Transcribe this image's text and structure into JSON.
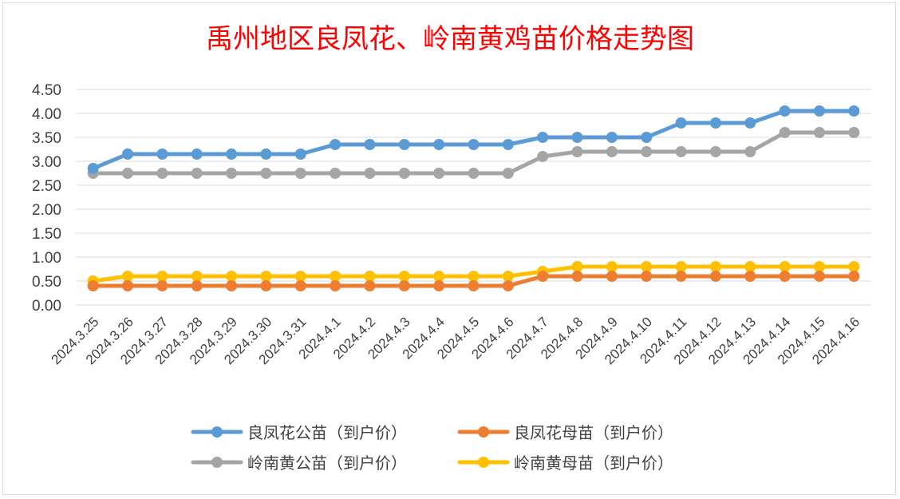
{
  "chart_data": {
    "type": "line",
    "title": "禹州地区良凤花、岭南黄鸡苗价格走势图",
    "xlabel": "",
    "ylabel": "",
    "categories": [
      "2024.3.25",
      "2024.3.26",
      "2024.3.27",
      "2024.3.28",
      "2024.3.29",
      "2024.3.30",
      "2024.3.31",
      "2024.4.1",
      "2024.4.2",
      "2024.4.3",
      "2024.4.4",
      "2024.4.5",
      "2024.4.6",
      "2024.4.7",
      "2024.4.8",
      "2024.4.9",
      "2024.4.10",
      "2024.4.11",
      "2024.4.12",
      "2024.4.13",
      "2024.4.14",
      "2024.4.15",
      "2024.4.16"
    ],
    "ylim": [
      0,
      4.5
    ],
    "yticks": [
      "0.00",
      "0.50",
      "1.00",
      "1.50",
      "2.00",
      "2.50",
      "3.00",
      "3.50",
      "4.00",
      "4.50"
    ],
    "grid": true,
    "legend_position": "bottom",
    "series": [
      {
        "name": "良凤花公苗（到户价）",
        "color": "#5b9bd5",
        "values": [
          2.85,
          3.15,
          3.15,
          3.15,
          3.15,
          3.15,
          3.15,
          3.35,
          3.35,
          3.35,
          3.35,
          3.35,
          3.35,
          3.5,
          3.5,
          3.5,
          3.5,
          3.8,
          3.8,
          3.8,
          4.05,
          4.05,
          4.05
        ]
      },
      {
        "name": "良凤花母苗（到户价）",
        "color": "#ed7d31",
        "values": [
          0.4,
          0.4,
          0.4,
          0.4,
          0.4,
          0.4,
          0.4,
          0.4,
          0.4,
          0.4,
          0.4,
          0.4,
          0.4,
          0.6,
          0.6,
          0.6,
          0.6,
          0.6,
          0.6,
          0.6,
          0.6,
          0.6,
          0.6
        ]
      },
      {
        "name": "岭南黄公苗（到户价）",
        "color": "#a5a5a5",
        "values": [
          2.75,
          2.75,
          2.75,
          2.75,
          2.75,
          2.75,
          2.75,
          2.75,
          2.75,
          2.75,
          2.75,
          2.75,
          2.75,
          3.1,
          3.2,
          3.2,
          3.2,
          3.2,
          3.2,
          3.2,
          3.6,
          3.6,
          3.6
        ]
      },
      {
        "name": "岭南黄母苗（到户价）",
        "color": "#ffc000",
        "values": [
          0.5,
          0.6,
          0.6,
          0.6,
          0.6,
          0.6,
          0.6,
          0.6,
          0.6,
          0.6,
          0.6,
          0.6,
          0.6,
          0.7,
          0.8,
          0.8,
          0.8,
          0.8,
          0.8,
          0.8,
          0.8,
          0.8,
          0.8
        ]
      }
    ]
  }
}
